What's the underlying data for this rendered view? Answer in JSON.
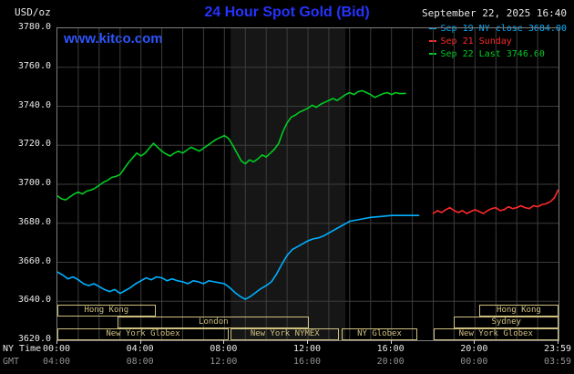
{
  "header": {
    "units_label": "USD/oz",
    "title": "24 Hour Spot Gold (Bid)",
    "datetime": "September 22, 2025 16:40",
    "watermark": "www.kitco.com"
  },
  "colors": {
    "title": "#2533ff",
    "watermark": "#2d55ff",
    "axis_text": "#e8e8e8",
    "gmt_text": "#909090",
    "session": "#cfc080",
    "plot_border": "#7e7e7e"
  },
  "legend": [
    {
      "label": "Sep 19 NY close 3684.00",
      "color": "#00b0ff"
    },
    {
      "label": "Sep 21 Sunday",
      "color": "#ff2a2a"
    },
    {
      "label": "Sep 22 Last 3746.60",
      "color": "#00cc22"
    }
  ],
  "axes": {
    "y_ticks": [
      "3780.0",
      "3760.0",
      "3740.0",
      "3720.0",
      "3700.0",
      "3680.0",
      "3660.0",
      "3640.0",
      "3620.0"
    ],
    "x_ny": {
      "label": "NY Time",
      "ticks": [
        "00:00",
        "04:00",
        "08:00",
        "12:00",
        "16:00",
        "20:00",
        "23:59"
      ]
    },
    "x_gmt": {
      "label": "GMT",
      "ticks": [
        "04:00",
        "08:00",
        "12:00",
        "16:00",
        "20:00",
        "00:00",
        "03:59"
      ]
    }
  },
  "sessions": {
    "rows": [
      {
        "boxes": [
          {
            "label": "Hong Kong",
            "start": 0,
            "end": 4.7
          },
          {
            "label": "Hong Kong",
            "start": 20.2,
            "end": 24
          }
        ]
      },
      {
        "boxes": [
          {
            "label": "London",
            "start": 2.9,
            "end": 12.05
          },
          {
            "label": "Sydney",
            "start": 19.0,
            "end": 24
          }
        ]
      },
      {
        "boxes": [
          {
            "label": "New York Globex",
            "start": 0,
            "end": 8.2
          },
          {
            "label": "New York NYMEX",
            "start": 8.3,
            "end": 13.5
          },
          {
            "label": "NY Globex",
            "start": 13.6,
            "end": 17.25
          },
          {
            "label": "New York Globex",
            "start": 18.0,
            "end": 24
          }
        ]
      }
    ]
  },
  "chart_data": {
    "type": "line",
    "title": "24 Hour Spot Gold (Bid)",
    "xlabel": "NY Time (hours)",
    "ylabel": "USD/oz",
    "xlim": [
      0,
      24
    ],
    "ylim": [
      3620,
      3780
    ],
    "x_grid_step": 1,
    "y_grid_step": 20,
    "x_tick_hours": [
      0,
      4,
      8,
      12,
      16,
      20,
      24
    ],
    "grid_color": "#3c3c3c",
    "band": {
      "start": 8.3,
      "end": 13.8,
      "color": "#161616"
    },
    "series": [
      {
        "name": "Sep 19 NY close",
        "color": "#00b0ff",
        "points": [
          [
            0,
            3655
          ],
          [
            0.25,
            3653.5
          ],
          [
            0.5,
            3651.5
          ],
          [
            0.75,
            3652.5
          ],
          [
            1,
            3651
          ],
          [
            1.25,
            3649
          ],
          [
            1.5,
            3648
          ],
          [
            1.75,
            3649
          ],
          [
            2,
            3647.5
          ],
          [
            2.25,
            3646
          ],
          [
            2.5,
            3645
          ],
          [
            2.75,
            3646
          ],
          [
            3,
            3644
          ],
          [
            3.25,
            3645.5
          ],
          [
            3.5,
            3647
          ],
          [
            3.75,
            3649
          ],
          [
            4,
            3650.5
          ],
          [
            4.25,
            3652
          ],
          [
            4.5,
            3651
          ],
          [
            4.75,
            3652.5
          ],
          [
            5,
            3652
          ],
          [
            5.25,
            3650.5
          ],
          [
            5.5,
            3651.5
          ],
          [
            5.75,
            3650.5
          ],
          [
            6,
            3650
          ],
          [
            6.25,
            3649
          ],
          [
            6.5,
            3650.5
          ],
          [
            6.75,
            3650
          ],
          [
            7,
            3649
          ],
          [
            7.25,
            3650.5
          ],
          [
            7.5,
            3650
          ],
          [
            7.75,
            3649.5
          ],
          [
            8,
            3649
          ],
          [
            8.25,
            3647
          ],
          [
            8.5,
            3644.5
          ],
          [
            8.75,
            3642.5
          ],
          [
            9,
            3641
          ],
          [
            9.25,
            3642.5
          ],
          [
            9.5,
            3644.5
          ],
          [
            9.75,
            3646.5
          ],
          [
            10,
            3648
          ],
          [
            10.25,
            3650
          ],
          [
            10.5,
            3654
          ],
          [
            10.75,
            3659
          ],
          [
            11,
            3663.5
          ],
          [
            11.25,
            3666.5
          ],
          [
            11.5,
            3668
          ],
          [
            11.75,
            3669.5
          ],
          [
            12,
            3671
          ],
          [
            12.25,
            3672
          ],
          [
            12.5,
            3672.5
          ],
          [
            12.75,
            3673.5
          ],
          [
            13,
            3675
          ],
          [
            13.25,
            3676.5
          ],
          [
            13.5,
            3678
          ],
          [
            13.75,
            3679.5
          ],
          [
            14,
            3681
          ],
          [
            14.25,
            3681.5
          ],
          [
            14.5,
            3682
          ],
          [
            14.75,
            3682.5
          ],
          [
            15,
            3683
          ],
          [
            15.5,
            3683.5
          ],
          [
            16,
            3684
          ],
          [
            16.5,
            3684
          ],
          [
            17,
            3684
          ],
          [
            17.3,
            3684
          ]
        ]
      },
      {
        "name": "Sep 21 Sunday",
        "color": "#ff2a2a",
        "points": [
          [
            18,
            3685
          ],
          [
            18.2,
            3686.5
          ],
          [
            18.4,
            3685.5
          ],
          [
            18.6,
            3687
          ],
          [
            18.8,
            3688
          ],
          [
            19,
            3686.5
          ],
          [
            19.2,
            3685.5
          ],
          [
            19.4,
            3686.5
          ],
          [
            19.6,
            3685
          ],
          [
            19.8,
            3686
          ],
          [
            20,
            3687
          ],
          [
            20.2,
            3686
          ],
          [
            20.4,
            3685
          ],
          [
            20.6,
            3686.5
          ],
          [
            20.8,
            3687.5
          ],
          [
            21,
            3688
          ],
          [
            21.2,
            3686.5
          ],
          [
            21.4,
            3687
          ],
          [
            21.6,
            3688.5
          ],
          [
            21.8,
            3687.5
          ],
          [
            22,
            3688
          ],
          [
            22.2,
            3689
          ],
          [
            22.4,
            3688
          ],
          [
            22.6,
            3687.5
          ],
          [
            22.8,
            3689
          ],
          [
            23,
            3688.5
          ],
          [
            23.2,
            3689.5
          ],
          [
            23.4,
            3690
          ],
          [
            23.6,
            3691
          ],
          [
            23.8,
            3693
          ],
          [
            23.98,
            3697
          ]
        ]
      },
      {
        "name": "Sep 22 Last",
        "color": "#00cc22",
        "points": [
          [
            0,
            3694
          ],
          [
            0.2,
            3692.5
          ],
          [
            0.4,
            3692
          ],
          [
            0.6,
            3693.5
          ],
          [
            0.8,
            3695
          ],
          [
            1,
            3696
          ],
          [
            1.2,
            3695
          ],
          [
            1.4,
            3696.5
          ],
          [
            1.6,
            3697
          ],
          [
            1.8,
            3698
          ],
          [
            2,
            3699.5
          ],
          [
            2.2,
            3701
          ],
          [
            2.4,
            3702
          ],
          [
            2.6,
            3703.5
          ],
          [
            2.8,
            3704
          ],
          [
            3,
            3705
          ],
          [
            3.2,
            3708
          ],
          [
            3.4,
            3711
          ],
          [
            3.6,
            3713.5
          ],
          [
            3.8,
            3716
          ],
          [
            4,
            3714.5
          ],
          [
            4.2,
            3716
          ],
          [
            4.4,
            3718.5
          ],
          [
            4.6,
            3721
          ],
          [
            4.8,
            3719
          ],
          [
            5,
            3717
          ],
          [
            5.2,
            3715.5
          ],
          [
            5.4,
            3714.5
          ],
          [
            5.6,
            3716
          ],
          [
            5.8,
            3717
          ],
          [
            6,
            3716
          ],
          [
            6.2,
            3717.5
          ],
          [
            6.4,
            3719
          ],
          [
            6.6,
            3718
          ],
          [
            6.8,
            3717
          ],
          [
            7,
            3718.5
          ],
          [
            7.2,
            3720
          ],
          [
            7.4,
            3721.5
          ],
          [
            7.6,
            3723
          ],
          [
            7.8,
            3724
          ],
          [
            8,
            3725
          ],
          [
            8.2,
            3723.5
          ],
          [
            8.4,
            3720
          ],
          [
            8.6,
            3716
          ],
          [
            8.8,
            3712
          ],
          [
            9,
            3710.5
          ],
          [
            9.2,
            3712.5
          ],
          [
            9.4,
            3711.5
          ],
          [
            9.6,
            3713
          ],
          [
            9.8,
            3715
          ],
          [
            10,
            3714
          ],
          [
            10.2,
            3716
          ],
          [
            10.4,
            3718
          ],
          [
            10.6,
            3721
          ],
          [
            10.8,
            3727
          ],
          [
            11,
            3731.5
          ],
          [
            11.2,
            3734.5
          ],
          [
            11.4,
            3735.5
          ],
          [
            11.6,
            3737
          ],
          [
            11.8,
            3738
          ],
          [
            12,
            3739
          ],
          [
            12.2,
            3740.5
          ],
          [
            12.4,
            3739.5
          ],
          [
            12.6,
            3741
          ],
          [
            12.8,
            3742
          ],
          [
            13,
            3743
          ],
          [
            13.2,
            3744
          ],
          [
            13.4,
            3743
          ],
          [
            13.6,
            3744.5
          ],
          [
            13.8,
            3746
          ],
          [
            14,
            3747
          ],
          [
            14.2,
            3746
          ],
          [
            14.4,
            3747.5
          ],
          [
            14.6,
            3748
          ],
          [
            14.8,
            3747
          ],
          [
            15,
            3746
          ],
          [
            15.2,
            3744.5
          ],
          [
            15.4,
            3745.5
          ],
          [
            15.6,
            3746.5
          ],
          [
            15.8,
            3747
          ],
          [
            16,
            3746
          ],
          [
            16.2,
            3747
          ],
          [
            16.4,
            3746.5
          ],
          [
            16.67,
            3746.6
          ]
        ]
      }
    ]
  }
}
